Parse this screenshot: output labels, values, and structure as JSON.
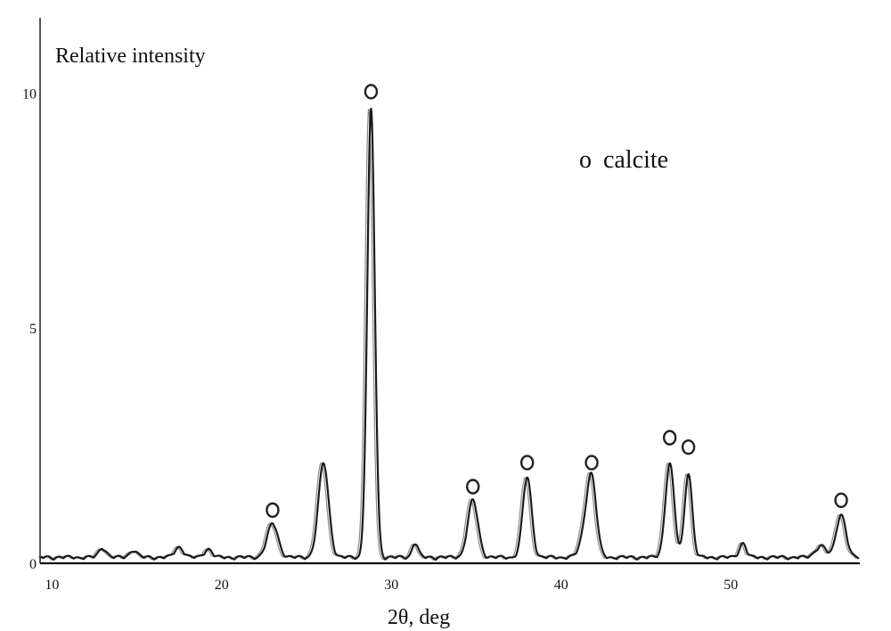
{
  "chart_data": {
    "type": "line",
    "title": "",
    "ylabel": "Relative intensity",
    "xlabel": "2θ, deg",
    "xlim": [
      9.3,
      57.6
    ],
    "ylim": [
      0,
      11.6
    ],
    "x_ticks": [
      10,
      20,
      30,
      40,
      50
    ],
    "y_ticks": [
      0,
      5,
      10
    ],
    "grid": false,
    "legend": {
      "marker": "o",
      "label": "calcite",
      "placement": "top-right"
    },
    "peaks": [
      {
        "x": 13.0,
        "y": 0.2,
        "w": 0.22
      },
      {
        "x": 14.8,
        "y": 0.15,
        "w": 0.22
      },
      {
        "x": 17.5,
        "y": 0.22,
        "w": 0.25
      },
      {
        "x": 19.2,
        "y": 0.18,
        "w": 0.22
      },
      {
        "x": 23.0,
        "y": 0.71,
        "w": 0.32
      },
      {
        "x": 26.0,
        "y": 2.0,
        "w": 0.3
      },
      {
        "x": 28.8,
        "y": 9.51,
        "w": 0.22
      },
      {
        "x": 31.4,
        "y": 0.3,
        "w": 0.18
      },
      {
        "x": 34.8,
        "y": 1.21,
        "w": 0.3
      },
      {
        "x": 38.0,
        "y": 1.7,
        "w": 0.26
      },
      {
        "x": 41.4,
        "y": 0.4,
        "w": 0.3
      },
      {
        "x": 41.8,
        "y": 1.61,
        "w": 0.28
      },
      {
        "x": 46.4,
        "y": 1.99,
        "w": 0.26
      },
      {
        "x": 47.5,
        "y": 1.8,
        "w": 0.22
      },
      {
        "x": 50.7,
        "y": 0.3,
        "w": 0.2
      },
      {
        "x": 55.3,
        "y": 0.25,
        "w": 0.3
      },
      {
        "x": 56.5,
        "y": 0.92,
        "w": 0.28
      }
    ],
    "calcite_markers": [
      {
        "x": 23.0,
        "y": 1.13
      },
      {
        "x": 28.8,
        "y": 10.03
      },
      {
        "x": 34.8,
        "y": 1.63
      },
      {
        "x": 38.0,
        "y": 2.14
      },
      {
        "x": 41.8,
        "y": 2.14
      },
      {
        "x": 46.4,
        "y": 2.67
      },
      {
        "x": 47.5,
        "y": 2.47
      },
      {
        "x": 56.5,
        "y": 1.34
      }
    ]
  }
}
